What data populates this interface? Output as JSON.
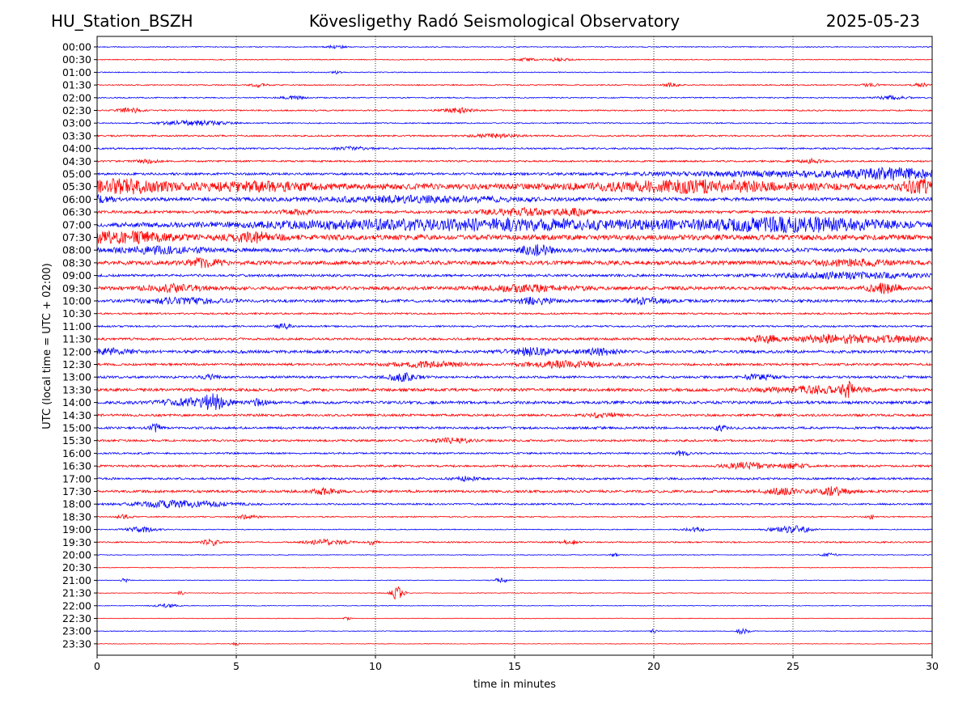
{
  "header": {
    "station": "HU_Station_BSZH",
    "observatory": "Kövesligethy Radó Seismological Observatory",
    "date": "2025-05-23"
  },
  "chart_data": {
    "type": "line",
    "title": "Kövesligethy Radó Seismological Observatory",
    "xlabel": "time in minutes",
    "ylabel": "UTC (local time = UTC + 02:00)",
    "xlim": [
      0,
      30
    ],
    "x_ticks": [
      "0",
      "5",
      "10",
      "15",
      "20",
      "25",
      "30"
    ],
    "x_grid": "dotted vertical lines at each 5 minutes",
    "row_colors": [
      "#0000ff",
      "#ff0000"
    ],
    "rows": [
      {
        "label": "00:00",
        "noise": 0.08,
        "events": [
          [
            8.6,
            0.3,
            0.2
          ]
        ]
      },
      {
        "label": "00:30",
        "noise": 0.08,
        "events": [
          [
            15.4,
            0.25,
            0.3
          ],
          [
            16.6,
            0.25,
            0.3
          ]
        ]
      },
      {
        "label": "01:00",
        "noise": 0.08,
        "events": [
          [
            8.6,
            0.25,
            0.1
          ]
        ]
      },
      {
        "label": "01:30",
        "noise": 0.1,
        "events": [
          [
            5.8,
            0.3,
            0.2
          ],
          [
            20.6,
            0.3,
            0.2
          ],
          [
            27.8,
            0.3,
            0.2
          ],
          [
            29.6,
            0.3,
            0.2
          ]
        ]
      },
      {
        "label": "02:00",
        "noise": 0.1,
        "events": [
          [
            7.0,
            0.3,
            0.3
          ],
          [
            28.6,
            0.3,
            0.4
          ]
        ]
      },
      {
        "label": "02:30",
        "noise": 0.12,
        "events": [
          [
            1.2,
            0.4,
            0.3
          ],
          [
            13.0,
            0.4,
            0.4
          ]
        ]
      },
      {
        "label": "03:00",
        "noise": 0.1,
        "events": [
          [
            3.5,
            0.45,
            0.8
          ]
        ]
      },
      {
        "label": "03:30",
        "noise": 0.14,
        "events": [
          [
            14.2,
            0.3,
            0.6
          ]
        ]
      },
      {
        "label": "04:00",
        "noise": 0.14,
        "events": [
          [
            9.2,
            0.3,
            0.4
          ]
        ]
      },
      {
        "label": "04:30",
        "noise": 0.15,
        "events": [
          [
            1.8,
            0.3,
            0.3
          ],
          [
            25.6,
            0.35,
            0.3
          ]
        ]
      },
      {
        "label": "05:00",
        "noise": 0.2,
        "events": [
          [
            25.5,
            0.45,
            4.0
          ],
          [
            28.8,
            0.7,
            1.0
          ]
        ]
      },
      {
        "label": "05:30",
        "noise": 0.5,
        "events": [
          [
            0.8,
            0.95,
            1.2
          ],
          [
            5.6,
            0.55,
            1.5
          ],
          [
            21.5,
            0.8,
            2.5
          ],
          [
            29.7,
            0.95,
            0.6
          ]
        ]
      },
      {
        "label": "06:00",
        "noise": 0.3,
        "events": [
          [
            0.2,
            0.6,
            0.3
          ],
          [
            11.5,
            0.45,
            2.5
          ]
        ]
      },
      {
        "label": "06:30",
        "noise": 0.25,
        "events": [
          [
            7.2,
            0.45,
            0.4
          ],
          [
            15.3,
            0.55,
            1.0
          ],
          [
            17.2,
            0.45,
            0.4
          ]
        ]
      },
      {
        "label": "07:00",
        "noise": 0.35,
        "events": [
          [
            13.8,
            0.85,
            5.5
          ],
          [
            25.2,
            1.0,
            2.5
          ]
        ]
      },
      {
        "label": "07:30",
        "noise": 0.45,
        "events": [
          [
            0.8,
            0.85,
            1.3
          ],
          [
            5.6,
            0.7,
            0.6
          ]
        ]
      },
      {
        "label": "08:00",
        "noise": 0.35,
        "events": [
          [
            2.2,
            0.5,
            1.0
          ],
          [
            15.8,
            0.75,
            0.4
          ]
        ]
      },
      {
        "label": "08:30",
        "noise": 0.35,
        "events": [
          [
            3.8,
            0.6,
            0.5
          ],
          [
            27.0,
            0.5,
            1.0
          ]
        ]
      },
      {
        "label": "09:00",
        "noise": 0.22,
        "events": [
          [
            27.0,
            0.45,
            2.0
          ]
        ]
      },
      {
        "label": "09:30",
        "noise": 0.3,
        "events": [
          [
            2.8,
            0.55,
            0.8
          ],
          [
            15.5,
            0.45,
            1.2
          ],
          [
            28.3,
            0.75,
            0.4
          ]
        ]
      },
      {
        "label": "10:00",
        "noise": 0.25,
        "events": [
          [
            3.0,
            0.45,
            1.0
          ],
          [
            15.8,
            0.55,
            0.5
          ],
          [
            19.8,
            0.5,
            0.5
          ]
        ]
      },
      {
        "label": "10:30",
        "noise": 0.15,
        "events": []
      },
      {
        "label": "11:00",
        "noise": 0.15,
        "events": [
          [
            6.7,
            0.45,
            0.2
          ]
        ]
      },
      {
        "label": "11:30",
        "noise": 0.2,
        "events": [
          [
            24.0,
            0.6,
            0.4
          ],
          [
            26.6,
            0.75,
            1.0
          ],
          [
            29.0,
            0.5,
            0.8
          ]
        ]
      },
      {
        "label": "12:00",
        "noise": 0.25,
        "events": [
          [
            0.5,
            0.45,
            0.6
          ],
          [
            15.6,
            0.6,
            0.6
          ],
          [
            18.0,
            0.5,
            0.5
          ]
        ]
      },
      {
        "label": "12:30",
        "noise": 0.2,
        "events": [
          [
            12.0,
            0.45,
            1.0
          ],
          [
            16.8,
            0.55,
            1.0
          ]
        ]
      },
      {
        "label": "13:00",
        "noise": 0.2,
        "events": [
          [
            4.1,
            0.45,
            0.2
          ],
          [
            11.0,
            0.6,
            0.4
          ],
          [
            23.8,
            0.5,
            0.4
          ]
        ]
      },
      {
        "label": "13:30",
        "noise": 0.25,
        "events": [
          [
            25.8,
            0.55,
            1.4
          ],
          [
            27.0,
            1.0,
            0.15
          ]
        ]
      },
      {
        "label": "14:00",
        "noise": 0.25,
        "events": [
          [
            3.4,
            0.6,
            0.8
          ],
          [
            4.2,
            1.0,
            0.3
          ],
          [
            5.8,
            0.5,
            0.2
          ]
        ]
      },
      {
        "label": "14:30",
        "noise": 0.2,
        "events": [
          [
            18.2,
            0.4,
            0.4
          ]
        ]
      },
      {
        "label": "15:00",
        "noise": 0.2,
        "events": [
          [
            2.1,
            0.7,
            0.12
          ],
          [
            22.4,
            0.45,
            0.15
          ]
        ]
      },
      {
        "label": "15:30",
        "noise": 0.18,
        "events": [
          [
            12.8,
            0.4,
            0.5
          ]
        ]
      },
      {
        "label": "16:00",
        "noise": 0.15,
        "events": [
          [
            21.0,
            0.4,
            0.2
          ]
        ]
      },
      {
        "label": "16:30",
        "noise": 0.18,
        "events": [
          [
            23.3,
            0.6,
            0.5
          ],
          [
            25.0,
            0.4,
            0.4
          ]
        ]
      },
      {
        "label": "17:00",
        "noise": 0.18,
        "events": [
          [
            13.2,
            0.35,
            0.3
          ]
        ]
      },
      {
        "label": "17:30",
        "noise": 0.22,
        "events": [
          [
            8.2,
            0.45,
            0.3
          ],
          [
            24.6,
            0.45,
            0.5
          ],
          [
            26.4,
            0.7,
            0.4
          ]
        ]
      },
      {
        "label": "18:00",
        "noise": 0.15,
        "events": [
          [
            3.0,
            0.6,
            1.2
          ]
        ]
      },
      {
        "label": "18:30",
        "noise": 0.1,
        "events": [
          [
            1.0,
            0.35,
            0.2
          ],
          [
            5.4,
            0.35,
            0.3
          ],
          [
            27.8,
            0.35,
            0.1
          ]
        ]
      },
      {
        "label": "19:00",
        "noise": 0.08,
        "events": [
          [
            1.6,
            0.45,
            0.4
          ],
          [
            21.5,
            0.35,
            0.3
          ],
          [
            24.6,
            0.45,
            0.4
          ],
          [
            25.3,
            0.5,
            0.3
          ]
        ]
      },
      {
        "label": "19:30",
        "noise": 0.12,
        "events": [
          [
            4.1,
            0.55,
            0.2
          ],
          [
            8.3,
            0.5,
            0.5
          ],
          [
            9.9,
            0.55,
            0.1
          ],
          [
            17.0,
            0.4,
            0.2
          ]
        ]
      },
      {
        "label": "20:00",
        "noise": 0.06,
        "events": [
          [
            18.6,
            0.3,
            0.1
          ],
          [
            26.3,
            0.3,
            0.2
          ]
        ]
      },
      {
        "label": "20:30",
        "noise": 0.06,
        "events": []
      },
      {
        "label": "21:00",
        "noise": 0.06,
        "events": [
          [
            1.0,
            0.35,
            0.1
          ],
          [
            14.5,
            0.35,
            0.2
          ]
        ]
      },
      {
        "label": "21:30",
        "noise": 0.06,
        "events": [
          [
            3.0,
            0.3,
            0.1
          ],
          [
            10.8,
            1.3,
            0.15
          ]
        ]
      },
      {
        "label": "22:00",
        "noise": 0.06,
        "events": [
          [
            2.5,
            0.3,
            0.3
          ]
        ]
      },
      {
        "label": "22:30",
        "noise": 0.05,
        "events": [
          [
            9.0,
            0.25,
            0.1
          ]
        ]
      },
      {
        "label": "23:00",
        "noise": 0.06,
        "events": [
          [
            20.0,
            0.3,
            0.1
          ],
          [
            23.2,
            0.55,
            0.15
          ]
        ]
      },
      {
        "label": "23:30",
        "noise": 0.05,
        "events": [
          [
            5.0,
            0.25,
            0.1
          ]
        ]
      }
    ]
  }
}
